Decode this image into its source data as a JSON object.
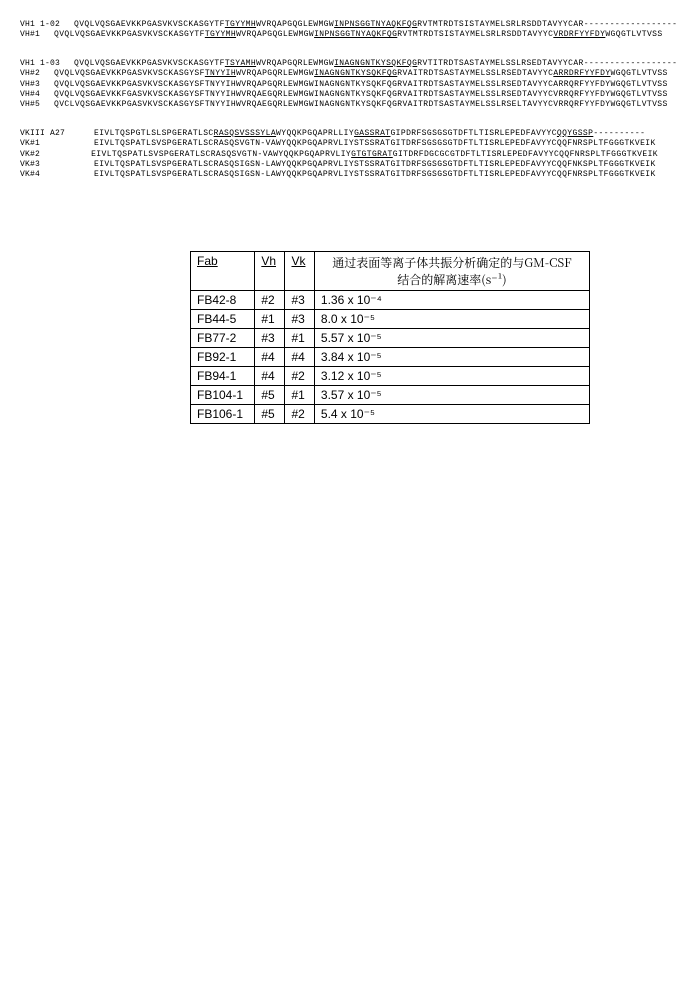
{
  "sequences": {
    "groups": [
      {
        "rows": [
          {
            "label": "VH1 1-02",
            "seq_plain": "QVQLVQSGAEVKKPGASVKVSCKASGYTFTGYYMHWVRQAPGQGLEWMGWINPNSGGTNYAQKFQGRVTMTRDTSISTAYMELSRLRSDDTAVYYCAR--------------------",
            "seq_html": "QVQLVQSGAEVKKPGASVKVSCKASGYTF<span class='underline'>TGYYMH</span>WVRQAPGQGLEWMGW<span class='underline'>INPNSGGTNYAQKFQG</span>RVTMTRDTSISTAYMELSRLRSDDTAVYYCAR--------------------"
          },
          {
            "label": "VH#1",
            "seq_plain": "QVQLVQSGAEVKKPGASVKVSCKASGYTFTGYYMHWVRQAPGQGLEWMGWINPNSGGTNYAQKFQGRVTMTRDTSISTAYMELSRLRSDDTAVYYCVRDRFYYFDYWGQGTLVTVSS",
            "seq_html": "QVQLVQSGAEVKKPGASVKVSCKASGYTF<span class='underline'>TGYYMH</span>WVRQAPGQGLEWMGW<span class='underline'>INPNSGGTNYAQKFQG</span>RVTMTRDTSISTAYMELSRLRSDDTAVYYC<span class='underline'>VRDRFYYFDY</span>WGQGTLVTVSS"
          }
        ]
      },
      {
        "rows": [
          {
            "label": "VH1 1-03",
            "seq_plain": "QVQLVQSGAEVKKPGASVKVSCKASGYTFTSYAMHWVRQAPGQRLEWMGWINAGNGNTKYSQKFQGRVTITRDTSASTAYMELSSLRSEDTAVYYCAR--------------------",
            "seq_html": "QVQLVQSGAEVKKPGASVKVSCKASGYTF<span class='underline'>TSYAMH</span>WVRQAPGQRLEWMGW<span class='underline'>INAGNGNTKYSQKFQG</span>RVTITRDTSASTAYMELSSLRSEDTAVYYCAR--------------------"
          },
          {
            "label": "VH#2",
            "seq_plain": "QVQLVQSGAEVKKPGASVKVSCKASGYSFTNYYIHWVRQAPGQRLEWMGWINAGNGNTKYSQKFQGRVAITRDTSASTAYMELSSLRSEDTAVYYCARRDRFYYFDYWGQGTLVTVSS",
            "seq_html": "QVQLVQSGAEVKKPGASVKVSCKASGYSF<span class='underline'>TNYYIH</span>WVRQAPGQRLEWMGW<span class='underline'>INAGNGNTKYSQKFQG</span>RVAITRDTSASTAYMELSSLRSEDTAVYYC<span class='underline'>ARRDRFYYFDY</span>WGQGTLVTVSS"
          },
          {
            "label": "VH#3",
            "seq_plain": "QVQLVQSGAEVKKPGASVKVSCKASGYSFTNYYIHWVRQAPGQRLEWMGWINAGNGNTKYSQKFQGRVAITRDTSASTAYMELSSLRSEDTAVYYCARRQRFYYFDYWGQGTLVTVSS",
            "seq_html": "QVQLVQSGAEVKKPGASVKVSCKASGYSFTNYYIHWVRQAPGQRLEWMGWINAGNGNTKYSQKFQGRVAITRDTSASTAYMELSSLRSEDTAVYYCARRQRFYYFDYWGQGTLVTVSS"
          },
          {
            "label": "VH#4",
            "seq_plain": "QVQLVQSGAEVKKFGASVKVSCKASGYSFTNYYIHWVRQAEGQRLEWMGWINAGNGNTKYSQKFQGRVAITRDTSASTAYMELSSLRSEDTAVYYCVRRQRFYYFDYWGQGTLVTVSS",
            "seq_html": "QVQLVQSGAEVKKFGASVKVSCKASGYSFTNYYIHWVRQAEGQRLEWMGWINAGNGNTKYSQKFQGRVAITRDTSASTAYMELSSLRSEDTAVYYCVRRQRFYYFDYWGQGTLVTVSS"
          },
          {
            "label": "VH#5",
            "seq_plain": "QVCLVQSGAEVKKPGASVKVSCKASGYSFTNYYIHWVRQAEGQRLEWMGWINAGNGNTKYSQKFQGRVAITRDTSASTAYMELSSLRSELTAVYYCVRRQRFYYFDYWGQGTLVTVSS",
            "seq_html": "QVCLVQSGAEVKKPGASVKVSCKASGYSFTNYYIHWVRQAEGQRLEWMGWINAGNGNTKYSQKFQGRVAITRDTSASTAYMELSSLRSELTAVYYCVRRQRFYYFDYWGQGTLVTVSS"
          }
        ]
      },
      {
        "rows": [
          {
            "label": "VKIII A27",
            "seq_plain": "EIVLTQSPGTLSLSPGERATLSCRASQSVSSSYLAWYQQKPGQAPRLLIYGASSRATGIPDRFSGSGSGTDFTLTISRLEPEDFAVYYCQQYGSSP----------",
            "seq_html": "EIVLTQSPGTLSLSPGERATLSC<span class='underline'>RASQSVSSSYLA</span>WYQQKPGQAPRLLIY<span class='underline'>GASSRAT</span>GIPDRFSGSGSGTDFTLTISRLEPEDFAVYYC<span class='underline'>QQYGSSP</span>----------"
          },
          {
            "label": "VK#1",
            "seq_plain": "EIVLTQSPATLSVSPGERATLSCRASQSVGTN-VAWYQQKPGQAPRVLIYSTSSRATGITDRFSGSGSGTDFTLTISRLEPEDFAVYYCQQFNRSPLTFGGGTKVEIK",
            "seq_html": "EIVLTQSPATLSVSPGERATLSCRASQSVGTN-VAWYQQKPGQAPRVLIYSTSSRATGITDRFSGSGSGTDFTLTISRLEPEDFAVYYCQQFNRSPLTFGGGTKVEIK"
          },
          {
            "label": "VK#2",
            "seq_plain": "EIVLTQSPATLSVSPGERATLSCRASQSVGTN-VAWYQQKPGQAPRVLIYGTGTGRATGITDRFDGCGCGTDFTLTISRLEPEDFAVYYCQQFNRSPLTFGGGTKVEIK",
            "seq_html": "EIVLTQSPATLSVSPGERATLSCRASQSVGTN-VAWYQQKPGQAPRVLIY<span class='underline'>GTGTGRAT</span>GITDRFDGCGCGTDFTLTISRLEPEDFAVYYCQQFNRSPLTFGGGTKVEIK"
          },
          {
            "label": "VK#3",
            "seq_plain": "EIVLTQSPATLSVSPGERATLSCRASQSIGSN-LAWYQQKPGQAPRVLIYSTSSRATGITDRFSGSGSGTDFTLTISRLEPEDFAVYYCQQFNKSPLTFGGGTKVEIK",
            "seq_html": "EIVLTQSPATLSVSPGERATLSCRASQSIGSN-LAWYQQKPGQAPRVLIYSTSSRATGITDRFSGSGSGTDFTLTISRLEPEDFAVYYCQQFNKSPLTFGGGTKVEIK"
          },
          {
            "label": "VK#4",
            "seq_plain": "EIVLTQSPATLSVSPGERATLSCRASQSIGSN-LAWYQQKPGQAPRVLIYSTSSRATGITDRFSGSGSGTDFTLTISRLEPEDFAVYYCQQFNRSPLTFGGGTKVEIK",
            "seq_html": "EIVLTQSPATLSVSPGERATLSCRASQSIGSN-LAWYQQKPGQAPRVLIYSTSSRATGITDRFSGSGSGTDFTLTISRLEPEDFAVYYCQQFNRSPLTFGGGTKVEIK"
          }
        ]
      }
    ]
  },
  "table": {
    "headers": {
      "fab": "Fab",
      "vh": "Vh",
      "vk": "Vk",
      "rate_line1": "通过表面等离子体共振分析确定的与GM-CSF",
      "rate_line2": "结合的解离速率(s⁻¹)"
    },
    "rows": [
      {
        "fab": "FB42-8",
        "vh": "#2",
        "vk": "#3",
        "rate": "1.36 x 10⁻⁴"
      },
      {
        "fab": "FB44-5",
        "vh": "#1",
        "vk": "#3",
        "rate": "8.0 x 10⁻⁵"
      },
      {
        "fab": "FB77-2",
        "vh": "#3",
        "vk": "#1",
        "rate": "5.57 x 10⁻⁵"
      },
      {
        "fab": "FB92-1",
        "vh": "#4",
        "vk": "#4",
        "rate": "3.84 x 10⁻⁵"
      },
      {
        "fab": "FB94-1",
        "vh": "#4",
        "vk": "#2",
        "rate": "3.12 x 10⁻⁵"
      },
      {
        "fab": "FB104-1",
        "vh": "#5",
        "vk": "#1",
        "rate": "3.57 x 10⁻⁵"
      },
      {
        "fab": "FB106-1",
        "vh": "#5",
        "vk": "#2",
        "rate": "5.4 x 10⁻⁵"
      }
    ]
  }
}
